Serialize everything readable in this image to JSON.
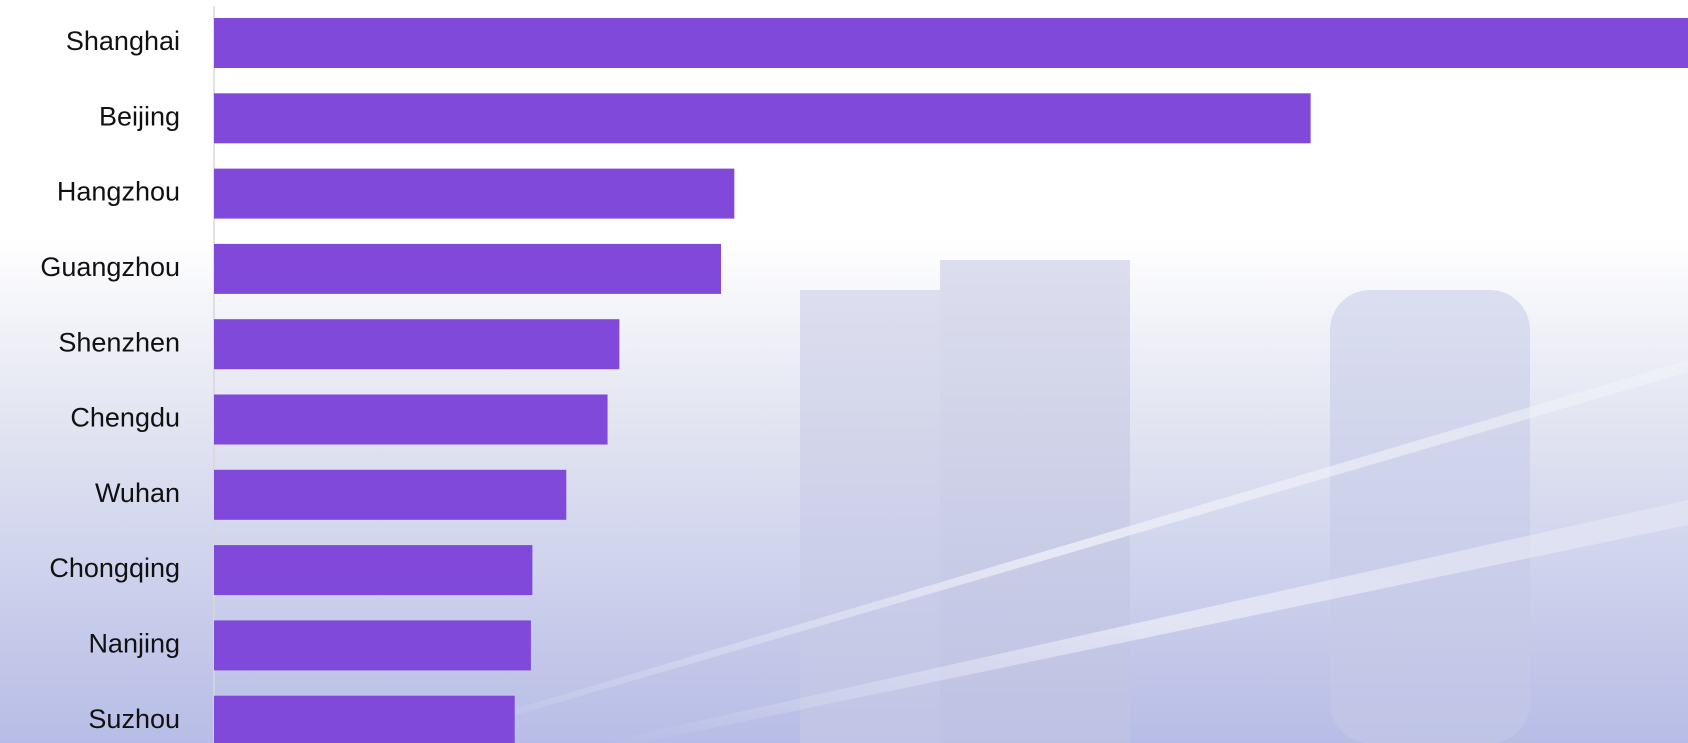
{
  "chart_data": {
    "type": "bar",
    "orientation": "horizontal",
    "categories": [
      "Shanghai",
      "Beijing",
      "Hangzhou",
      "Guangzhou",
      "Shenzhen",
      "Chengdu",
      "Wuhan",
      "Chongqing",
      "Nanjing",
      "Suzhou"
    ],
    "values": [
      100,
      74.4,
      35.3,
      34.4,
      27.5,
      26.7,
      23.9,
      21.6,
      21.5,
      20.4
    ],
    "color": "#8049d9",
    "xlim": [
      0,
      100
    ]
  }
}
